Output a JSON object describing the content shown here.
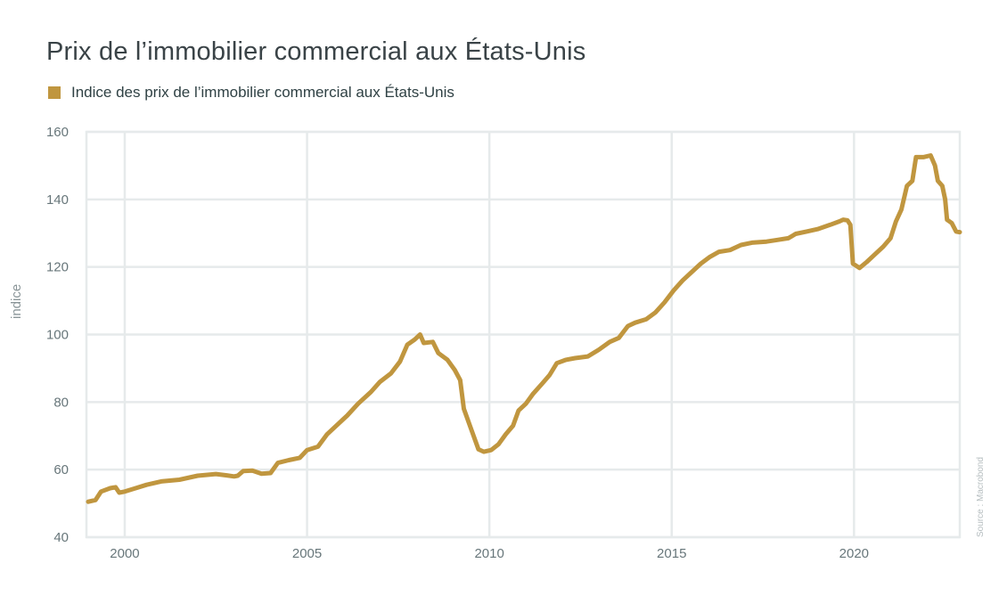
{
  "title": "Prix de l’immobilier commercial aux États-Unis",
  "source": "Source : Macrobond",
  "colors": {
    "series": "#c0963f",
    "grid": "#e6eaeb",
    "axis_text": "#67767a"
  },
  "chart_data": {
    "type": "line",
    "title": "Prix de l’immobilier commercial aux États-Unis",
    "xlabel": "",
    "ylabel": "indice",
    "ylim": [
      40,
      160
    ],
    "xlim": [
      1998.95,
      2022.9
    ],
    "yticks": [
      "40",
      "60",
      "80",
      "100",
      "120",
      "140",
      "160"
    ],
    "xticks": [
      "2000",
      "2005",
      "2010",
      "2015",
      "2020"
    ],
    "grid": true,
    "legend_position": "top-left",
    "series": [
      {
        "name": "Indice des prix de l’immobilier commercial aux États-Unis",
        "points": [
          [
            1999.0,
            50.5
          ],
          [
            1999.2,
            51.0
          ],
          [
            1999.35,
            53.5
          ],
          [
            1999.6,
            54.5
          ],
          [
            1999.75,
            54.8
          ],
          [
            1999.85,
            53.2
          ],
          [
            2000.0,
            53.5
          ],
          [
            2000.3,
            54.5
          ],
          [
            2000.6,
            55.5
          ],
          [
            2001.0,
            56.5
          ],
          [
            2001.5,
            57.0
          ],
          [
            2002.0,
            58.2
          ],
          [
            2002.5,
            58.7
          ],
          [
            2002.8,
            58.3
          ],
          [
            2003.0,
            58.0
          ],
          [
            2003.1,
            58.2
          ],
          [
            2003.25,
            59.6
          ],
          [
            2003.5,
            59.7
          ],
          [
            2003.75,
            58.8
          ],
          [
            2004.0,
            59.0
          ],
          [
            2004.2,
            62.0
          ],
          [
            2004.5,
            62.8
          ],
          [
            2004.8,
            63.5
          ],
          [
            2005.0,
            65.8
          ],
          [
            2005.3,
            66.8
          ],
          [
            2005.55,
            70.5
          ],
          [
            2005.8,
            73.0
          ],
          [
            2006.1,
            76.0
          ],
          [
            2006.4,
            79.5
          ],
          [
            2006.75,
            83.0
          ],
          [
            2007.0,
            86.0
          ],
          [
            2007.3,
            88.5
          ],
          [
            2007.55,
            92.0
          ],
          [
            2007.75,
            97.0
          ],
          [
            2007.95,
            98.5
          ],
          [
            2008.1,
            100.0
          ],
          [
            2008.2,
            97.5
          ],
          [
            2008.45,
            97.8
          ],
          [
            2008.6,
            94.5
          ],
          [
            2008.85,
            92.5
          ],
          [
            2009.05,
            89.5
          ],
          [
            2009.2,
            86.5
          ],
          [
            2009.3,
            78.0
          ],
          [
            2009.5,
            72.0
          ],
          [
            2009.7,
            66.0
          ],
          [
            2009.85,
            65.3
          ],
          [
            2010.05,
            65.8
          ],
          [
            2010.25,
            67.5
          ],
          [
            2010.45,
            70.5
          ],
          [
            2010.65,
            73.0
          ],
          [
            2010.8,
            77.5
          ],
          [
            2011.0,
            79.5
          ],
          [
            2011.2,
            82.5
          ],
          [
            2011.45,
            85.5
          ],
          [
            2011.65,
            88.0
          ],
          [
            2011.85,
            91.5
          ],
          [
            2012.1,
            92.5
          ],
          [
            2012.35,
            93.0
          ],
          [
            2012.7,
            93.5
          ],
          [
            2013.0,
            95.5
          ],
          [
            2013.3,
            97.8
          ],
          [
            2013.55,
            99.0
          ],
          [
            2013.8,
            102.5
          ],
          [
            2014.0,
            103.5
          ],
          [
            2014.3,
            104.5
          ],
          [
            2014.55,
            106.5
          ],
          [
            2014.8,
            109.5
          ],
          [
            2015.05,
            113.0
          ],
          [
            2015.3,
            116.0
          ],
          [
            2015.55,
            118.5
          ],
          [
            2015.8,
            121.0
          ],
          [
            2016.05,
            123.0
          ],
          [
            2016.3,
            124.5
          ],
          [
            2016.6,
            125.0
          ],
          [
            2016.9,
            126.5
          ],
          [
            2017.2,
            127.2
          ],
          [
            2017.6,
            127.5
          ],
          [
            2017.9,
            128.0
          ],
          [
            2018.2,
            128.5
          ],
          [
            2018.4,
            129.8
          ],
          [
            2018.7,
            130.5
          ],
          [
            2019.0,
            131.2
          ],
          [
            2019.35,
            132.5
          ],
          [
            2019.6,
            133.5
          ],
          [
            2019.7,
            134.0
          ],
          [
            2019.82,
            133.8
          ],
          [
            2019.9,
            132.5
          ],
          [
            2019.97,
            121.0
          ],
          [
            2020.15,
            119.7
          ],
          [
            2020.35,
            121.5
          ],
          [
            2020.55,
            123.5
          ],
          [
            2020.8,
            126.0
          ],
          [
            2021.0,
            128.5
          ],
          [
            2021.15,
            133.5
          ],
          [
            2021.3,
            137.0
          ],
          [
            2021.45,
            144.0
          ],
          [
            2021.6,
            145.5
          ],
          [
            2021.7,
            152.5
          ],
          [
            2021.9,
            152.5
          ],
          [
            2022.1,
            153.0
          ],
          [
            2022.22,
            150.0
          ],
          [
            2022.3,
            145.5
          ],
          [
            2022.42,
            144.0
          ],
          [
            2022.5,
            140.0
          ],
          [
            2022.55,
            134.0
          ],
          [
            2022.68,
            133.0
          ],
          [
            2022.8,
            130.5
          ],
          [
            2022.9,
            130.3
          ]
        ]
      }
    ]
  }
}
